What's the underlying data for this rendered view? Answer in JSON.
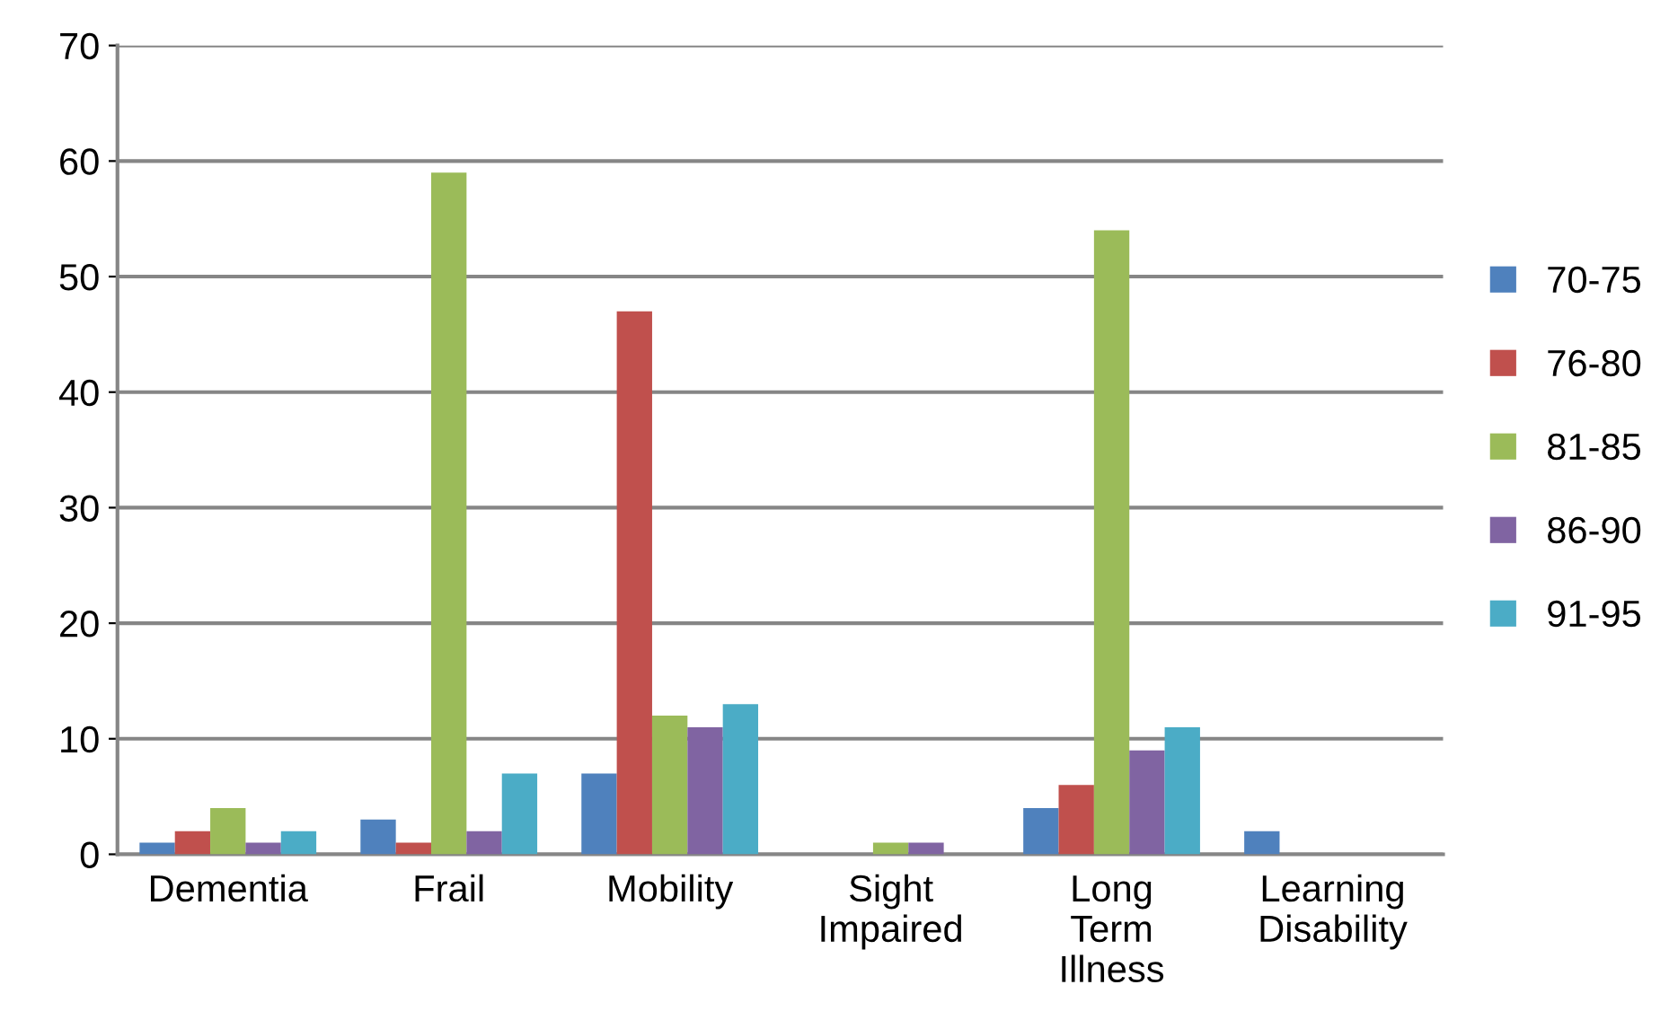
{
  "chart_data": {
    "type": "bar",
    "categories": [
      "Dementia",
      "Frail",
      "Mobility",
      "Sight Impaired",
      "Long Term Illness",
      "Learning Disability"
    ],
    "series": [
      {
        "name": "70-75",
        "color": "#4f81bd",
        "values": [
          1,
          3,
          7,
          0,
          4,
          2
        ]
      },
      {
        "name": "76-80",
        "color": "#c0504d",
        "values": [
          2,
          1,
          47,
          0,
          6,
          0
        ]
      },
      {
        "name": "81-85",
        "color": "#9bbb59",
        "values": [
          4,
          59,
          12,
          1,
          54,
          0
        ]
      },
      {
        "name": "86-90",
        "color": "#8064a2",
        "values": [
          1,
          2,
          11,
          1,
          9,
          0
        ]
      },
      {
        "name": "91-95",
        "color": "#4bacc6",
        "values": [
          2,
          7,
          13,
          0,
          11,
          0
        ]
      }
    ],
    "ylim": [
      0,
      70
    ],
    "yticks": [
      0,
      10,
      20,
      30,
      40,
      50,
      60,
      70
    ],
    "grid": "y",
    "legend": "right"
  }
}
